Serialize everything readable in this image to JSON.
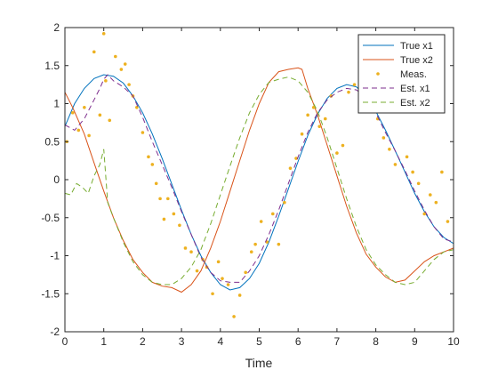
{
  "chart_data": {
    "type": "line",
    "xlabel": "Time",
    "ylabel": "",
    "title": "",
    "xlim": [
      0,
      10
    ],
    "ylim": [
      -2,
      2
    ],
    "xticks": [
      0,
      1,
      2,
      3,
      4,
      5,
      6,
      7,
      8,
      9,
      10
    ],
    "yticks": [
      -2,
      -1.5,
      -1,
      -0.5,
      0,
      0.5,
      1,
      1.5,
      2
    ],
    "xtick_labels": [
      "0",
      "1",
      "2",
      "3",
      "4",
      "5",
      "6",
      "7",
      "8",
      "9",
      "10"
    ],
    "ytick_labels": [
      "-2",
      "-1.5",
      "-1",
      "-0.5",
      "0",
      "0.5",
      "1",
      "1.5",
      "2"
    ],
    "grid": false,
    "legend_position": "top-right",
    "series": [
      {
        "name": "True x1",
        "style": "solid",
        "color": "#0072BD",
        "x": [
          0,
          0.25,
          0.5,
          0.75,
          1,
          1.25,
          1.5,
          1.75,
          2,
          2.25,
          2.5,
          2.75,
          3,
          3.25,
          3.5,
          3.75,
          4,
          4.25,
          4.5,
          4.75,
          5,
          5.25,
          5.5,
          5.75,
          6,
          6.25,
          6.5,
          6.75,
          7,
          7.25,
          7.5,
          7.75,
          8,
          8.25,
          8.5,
          8.75,
          9,
          9.25,
          9.5,
          9.75,
          10
        ],
        "y": [
          0.7,
          1.0,
          1.2,
          1.33,
          1.38,
          1.36,
          1.27,
          1.1,
          0.88,
          0.6,
          0.28,
          -0.06,
          -0.4,
          -0.72,
          -1.0,
          -1.22,
          -1.38,
          -1.45,
          -1.42,
          -1.3,
          -1.1,
          -0.82,
          -0.48,
          -0.12,
          0.24,
          0.58,
          0.86,
          1.07,
          1.2,
          1.25,
          1.22,
          1.1,
          0.9,
          0.65,
          0.38,
          0.1,
          -0.18,
          -0.42,
          -0.62,
          -0.76,
          -0.84
        ]
      },
      {
        "name": "True x2",
        "style": "solid",
        "color": "#D95319",
        "x": [
          0,
          0.2,
          0.5,
          0.75,
          1,
          1.25,
          1.5,
          1.75,
          2,
          2.25,
          2.5,
          2.75,
          3,
          3.25,
          3.5,
          3.75,
          4,
          4.25,
          4.5,
          4.75,
          5,
          5.25,
          5.5,
          5.75,
          6,
          6.1,
          6.25,
          6.5,
          6.75,
          7,
          7.25,
          7.5,
          7.75,
          8,
          8.25,
          8.5,
          8.75,
          9,
          9.25,
          9.5,
          9.75,
          10
        ],
        "y": [
          1.15,
          0.95,
          0.6,
          0.22,
          -0.15,
          -0.5,
          -0.8,
          -1.05,
          -1.22,
          -1.35,
          -1.4,
          -1.42,
          -1.48,
          -1.38,
          -1.2,
          -0.9,
          -0.55,
          -0.15,
          0.25,
          0.65,
          1.0,
          1.28,
          1.42,
          1.45,
          1.47,
          1.45,
          1.2,
          0.85,
          0.45,
          0.05,
          -0.35,
          -0.7,
          -0.98,
          -1.15,
          -1.28,
          -1.35,
          -1.32,
          -1.2,
          -1.08,
          -1.0,
          -0.95,
          -0.9
        ]
      },
      {
        "name": "Meas.",
        "style": "points",
        "color": "#EDB120",
        "x": [
          0.05,
          0.2,
          0.35,
          0.5,
          0.62,
          0.75,
          0.9,
          1.0,
          1.05,
          1.15,
          1.3,
          1.45,
          1.55,
          1.65,
          1.75,
          1.85,
          2.0,
          2.15,
          2.25,
          2.35,
          2.45,
          2.55,
          2.65,
          2.8,
          2.95,
          3.1,
          3.25,
          3.4,
          3.55,
          3.65,
          3.8,
          3.95,
          4.05,
          4.2,
          4.35,
          4.5,
          4.65,
          4.8,
          4.9,
          5.05,
          5.2,
          5.35,
          5.5,
          5.65,
          5.8,
          5.95,
          6.1,
          6.25,
          6.4,
          6.55,
          6.7,
          6.85,
          7.0,
          7.15,
          7.3,
          7.45,
          7.6,
          7.75,
          7.9,
          8.05,
          8.2,
          8.35,
          8.5,
          8.65,
          8.8,
          8.95,
          9.1,
          9.25,
          9.4,
          9.55,
          9.7,
          9.85
        ],
        "y": [
          0.5,
          0.88,
          0.65,
          0.95,
          0.58,
          1.68,
          0.85,
          1.92,
          1.3,
          0.78,
          1.62,
          1.45,
          1.52,
          1.25,
          1.1,
          0.95,
          0.62,
          0.3,
          0.2,
          -0.05,
          -0.25,
          -0.52,
          -0.25,
          -0.45,
          -0.6,
          -0.9,
          -0.95,
          -1.2,
          -1.05,
          -1.15,
          -1.5,
          -1.08,
          -1.3,
          -1.38,
          -1.8,
          -1.52,
          -1.22,
          -0.95,
          -0.85,
          -0.55,
          -0.82,
          -0.45,
          -0.85,
          -0.3,
          0.15,
          0.28,
          0.6,
          0.85,
          0.95,
          0.7,
          0.8,
          1.1,
          0.35,
          0.45,
          1.15,
          1.25,
          1.1,
          1.22,
          0.95,
          0.8,
          0.55,
          0.4,
          0.2,
          0.95,
          0.3,
          0.1,
          -0.05,
          -0.45,
          -0.2,
          -0.3,
          0.1,
          -0.55
        ]
      },
      {
        "name": "Est. x1",
        "style": "dashed",
        "color": "#7E2F8E",
        "x": [
          0,
          0.25,
          0.5,
          0.75,
          0.9,
          1.0,
          1.1,
          1.25,
          1.5,
          1.75,
          2,
          2.25,
          2.5,
          2.75,
          3,
          3.25,
          3.5,
          3.75,
          4,
          4.25,
          4.5,
          4.75,
          5,
          5.25,
          5.5,
          5.75,
          6,
          6.25,
          6.5,
          6.75,
          7,
          7.25,
          7.5,
          7.75,
          8,
          8.25,
          8.5,
          8.75,
          9,
          9.25,
          9.5,
          9.75,
          10
        ],
        "y": [
          0.72,
          0.65,
          0.8,
          1.05,
          1.2,
          1.32,
          1.38,
          1.3,
          1.22,
          1.1,
          0.82,
          0.5,
          0.2,
          -0.1,
          -0.42,
          -0.72,
          -1.02,
          -1.22,
          -1.33,
          -1.35,
          -1.35,
          -1.2,
          -1.0,
          -0.72,
          -0.4,
          -0.05,
          0.3,
          0.62,
          0.88,
          1.05,
          1.15,
          1.2,
          1.18,
          1.08,
          0.88,
          0.62,
          0.38,
          0.12,
          -0.15,
          -0.4,
          -0.62,
          -0.78,
          -0.82
        ]
      },
      {
        "name": "Est. x2",
        "style": "dashed",
        "color": "#77AC30",
        "x": [
          0,
          0.15,
          0.3,
          0.45,
          0.6,
          0.75,
          0.9,
          1.0,
          1.1,
          1.25,
          1.5,
          1.75,
          2,
          2.25,
          2.5,
          2.75,
          3,
          3.25,
          3.5,
          3.75,
          4,
          4.25,
          4.5,
          4.75,
          5,
          5.25,
          5.5,
          5.75,
          6,
          6.25,
          6.5,
          6.75,
          7,
          7.25,
          7.5,
          7.75,
          8,
          8.25,
          8.5,
          8.75,
          9,
          9.25,
          9.5,
          9.75,
          10
        ],
        "y": [
          -0.18,
          -0.2,
          -0.05,
          -0.1,
          -0.18,
          0.05,
          0.2,
          0.4,
          -0.3,
          -0.5,
          -0.82,
          -1.08,
          -1.25,
          -1.35,
          -1.38,
          -1.38,
          -1.3,
          -1.15,
          -0.92,
          -0.58,
          -0.2,
          0.18,
          0.55,
          0.88,
          1.12,
          1.28,
          1.32,
          1.35,
          1.3,
          1.15,
          0.9,
          0.55,
          0.15,
          -0.25,
          -0.62,
          -0.92,
          -1.12,
          -1.25,
          -1.35,
          -1.38,
          -1.35,
          -1.2,
          -1.05,
          -0.95,
          -0.92
        ]
      }
    ]
  }
}
